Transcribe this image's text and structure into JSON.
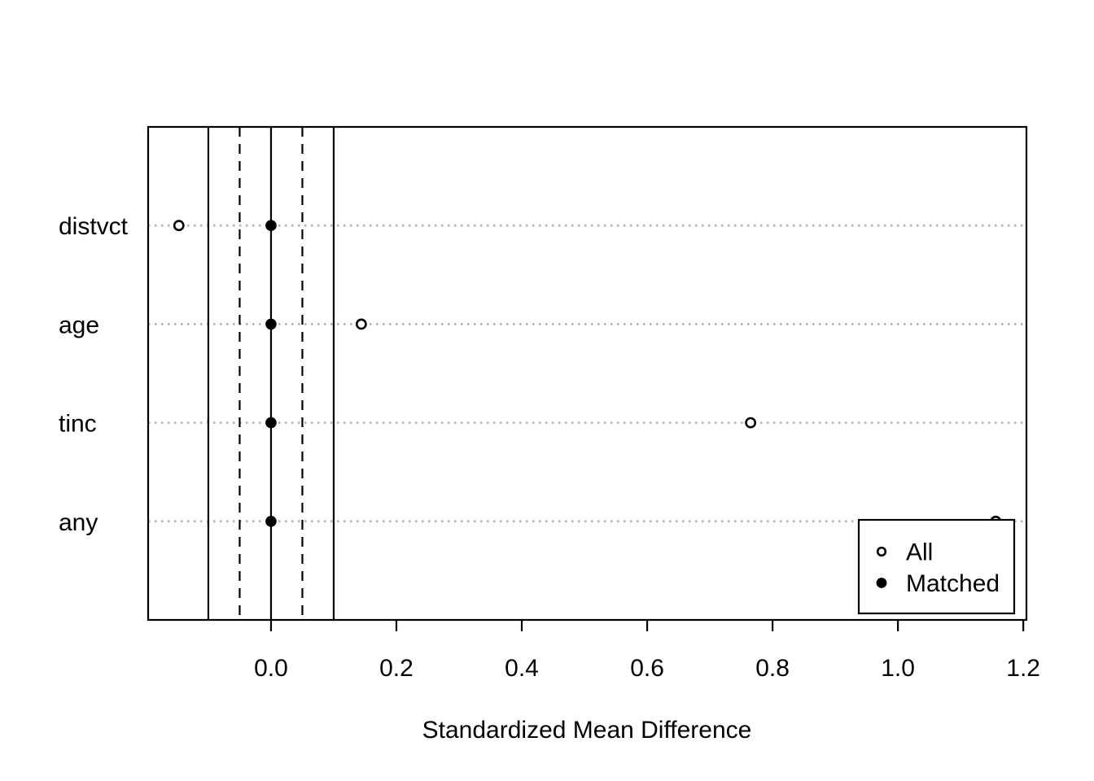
{
  "chart_data": {
    "type": "scatter",
    "title": "",
    "xlabel": "Standardized Mean Difference",
    "ylabel": "",
    "categories": [
      "distvct",
      "age",
      "tinc",
      "any"
    ],
    "series": [
      {
        "name": "All",
        "marker": "open-circle",
        "values": [
          -0.147,
          0.144,
          0.765,
          1.156
        ]
      },
      {
        "name": "Matched",
        "marker": "filled-circle",
        "values": [
          0.0,
          0.0,
          0.0,
          0.0
        ]
      }
    ],
    "reference_lines": [
      {
        "value": -0.1,
        "style": "solid"
      },
      {
        "value": -0.05,
        "style": "dashed"
      },
      {
        "value": 0.0,
        "style": "solid"
      },
      {
        "value": 0.05,
        "style": "dashed"
      },
      {
        "value": 0.1,
        "style": "solid"
      }
    ],
    "x_ticks": [
      {
        "value": 0.0,
        "label": "0.0"
      },
      {
        "value": 0.2,
        "label": "0.2"
      },
      {
        "value": 0.4,
        "label": "0.4"
      },
      {
        "value": 0.6,
        "label": "0.6"
      },
      {
        "value": 0.8,
        "label": "0.8"
      },
      {
        "value": 1.0,
        "label": "1.0"
      },
      {
        "value": 1.2,
        "label": "1.2"
      }
    ],
    "xlim": [
      -0.196,
      1.205
    ],
    "grid": "dotted horizontal gridline at each category row",
    "legend": {
      "position": "bottom-right",
      "entries": [
        {
          "label": "All",
          "marker": "open-circle"
        },
        {
          "label": "Matched",
          "marker": "filled-circle"
        }
      ]
    }
  },
  "colors": {
    "foreground": "#000000",
    "background": "#ffffff",
    "gridline": "#b5b5b5"
  }
}
